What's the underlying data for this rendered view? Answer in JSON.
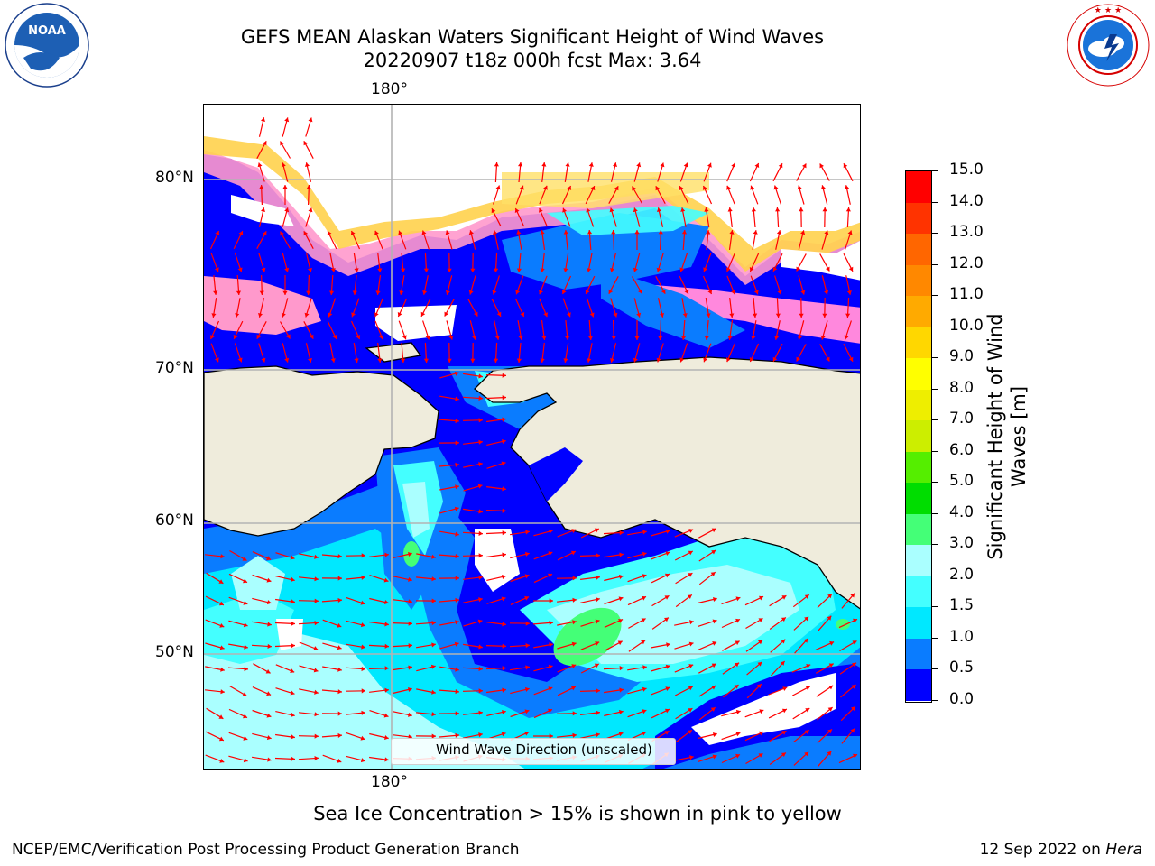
{
  "title": {
    "line1": "GEFS MEAN Alaskan Waters Significant Height of Wind Waves",
    "line2": "20220907 t18z 000h fcst   Max: 3.64"
  },
  "map": {
    "lon_label_top": "180°",
    "lon_label_bottom": "180°",
    "lat_labels": [
      "80°N",
      "70°N",
      "60°N",
      "50°N"
    ],
    "legend_label": "Wind Wave Direction (unscaled)",
    "land_color": "#efecdc",
    "arrow_color": "#ff0000"
  },
  "colorbar": {
    "label": "Significant Height of Wind Waves [m]",
    "ticks": [
      "0.0",
      "0.5",
      "1.0",
      "1.5",
      "2.0",
      "3.0",
      "4.0",
      "5.0",
      "6.0",
      "7.0",
      "8.0",
      "9.0",
      "10.0",
      "11.0",
      "12.0",
      "13.0",
      "14.0",
      "15.0"
    ],
    "colors": [
      "#0000ff",
      "#0a7cff",
      "#00e8ff",
      "#44ffff",
      "#aaffff",
      "#44ff77",
      "#00dd00",
      "#55ee00",
      "#ccee00",
      "#eeee00",
      "#ffff00",
      "#ffd700",
      "#ffaa00",
      "#ff8800",
      "#ff6600",
      "#ff3300",
      "#ff0000"
    ]
  },
  "ice_note": "Sea Ice Concentration > 15% is shown in pink to yellow",
  "footer": {
    "credit": "NCEP/EMC/Verification Post Processing Product Generation Branch",
    "date_prefix": "12 Sep 2022 on",
    "date_machine": "Hera"
  },
  "logos": {
    "noaa_text": "NOAA",
    "noaa_ring_text": "NATIONAL OCEANIC AND ATMOSPHERIC ADMINISTRATION · U.S. DEPARTMENT OF COMMERCE",
    "nws_ring_text": "NATIONAL WEATHER SERVICE"
  }
}
